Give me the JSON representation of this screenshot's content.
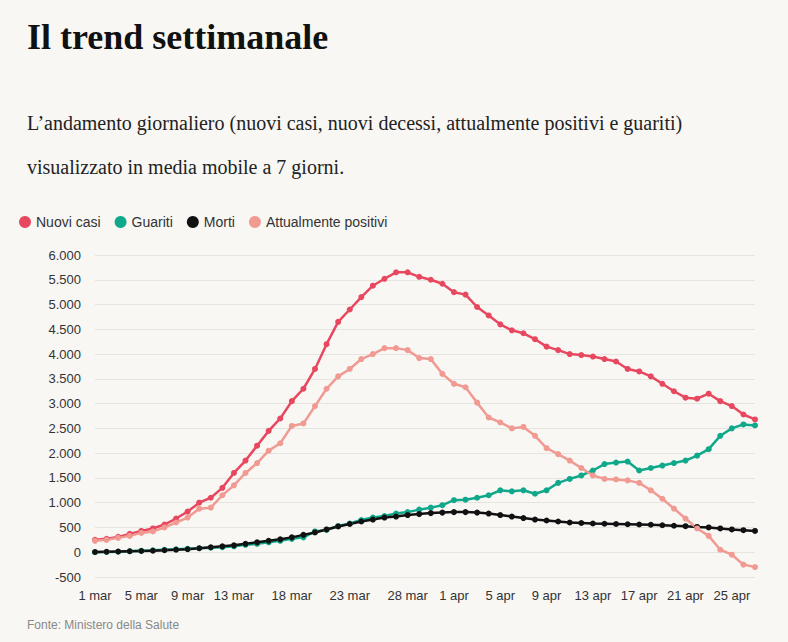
{
  "chart_data": {
    "type": "line",
    "title": "Il trend settimanale",
    "subtitle": "L’andamento giornaliero (nuovi casi, nuovi decessi, attualmente positivi e guariti) visualizzato in media mobile a 7 giorni.",
    "source": "Fonte: Ministero della Salute",
    "categories": [
      "1 mar",
      null,
      null,
      null,
      "5 mar",
      null,
      null,
      null,
      "9 mar",
      null,
      null,
      null,
      "13 mar",
      null,
      null,
      null,
      null,
      "18 mar",
      null,
      null,
      null,
      null,
      "23 mar",
      null,
      null,
      null,
      null,
      "28 mar",
      null,
      null,
      null,
      "1 apr",
      null,
      null,
      null,
      "5 apr",
      null,
      null,
      null,
      "9 apr",
      null,
      null,
      null,
      "13 apr",
      null,
      null,
      null,
      "17 apr",
      null,
      null,
      null,
      "21 apr",
      null,
      null,
      null,
      "25 apr",
      null,
      null
    ],
    "series": [
      {
        "name": "Nuovi casi",
        "color": "#e8485f",
        "values": [
          250,
          270,
          310,
          370,
          430,
          480,
          560,
          680,
          820,
          1000,
          1100,
          1300,
          1600,
          1850,
          2150,
          2450,
          2700,
          3050,
          3300,
          3700,
          4200,
          4650,
          4900,
          5150,
          5380,
          5520,
          5650,
          5650,
          5560,
          5500,
          5420,
          5250,
          5200,
          4950,
          4780,
          4600,
          4480,
          4420,
          4300,
          4150,
          4080,
          4000,
          3980,
          3950,
          3900,
          3850,
          3700,
          3650,
          3550,
          3400,
          3250,
          3120,
          3100,
          3200,
          3050,
          2950,
          2780,
          2680
        ]
      },
      {
        "name": "Guariti",
        "color": "#10a88a",
        "values": [
          0,
          5,
          10,
          20,
          30,
          40,
          50,
          60,
          70,
          80,
          90,
          100,
          120,
          150,
          170,
          200,
          230,
          270,
          300,
          420,
          450,
          530,
          580,
          650,
          700,
          730,
          780,
          810,
          860,
          900,
          950,
          1050,
          1060,
          1100,
          1150,
          1250,
          1230,
          1250,
          1180,
          1250,
          1400,
          1480,
          1550,
          1650,
          1780,
          1810,
          1830,
          1650,
          1700,
          1750,
          1800,
          1850,
          1950,
          2080,
          2350,
          2500,
          2580,
          2560
        ]
      },
      {
        "name": "Morti",
        "color": "#111111",
        "values": [
          5,
          10,
          15,
          20,
          25,
          30,
          40,
          50,
          60,
          80,
          100,
          120,
          140,
          170,
          200,
          230,
          260,
          300,
          350,
          400,
          460,
          520,
          570,
          620,
          660,
          700,
          720,
          750,
          770,
          790,
          800,
          810,
          810,
          800,
          780,
          750,
          720,
          690,
          660,
          640,
          620,
          600,
          590,
          580,
          575,
          570,
          565,
          560,
          555,
          545,
          535,
          525,
          510,
          500,
          480,
          460,
          445,
          430
        ]
      },
      {
        "name": "Attualmente positivi",
        "color": "#f09a92",
        "values": [
          230,
          250,
          290,
          330,
          390,
          420,
          500,
          600,
          700,
          880,
          900,
          1150,
          1350,
          1600,
          1800,
          2050,
          2200,
          2550,
          2600,
          2950,
          3300,
          3550,
          3700,
          3900,
          4000,
          4120,
          4120,
          4080,
          3920,
          3900,
          3600,
          3400,
          3330,
          3020,
          2720,
          2620,
          2500,
          2530,
          2350,
          2100,
          1980,
          1850,
          1700,
          1550,
          1480,
          1470,
          1450,
          1400,
          1250,
          1080,
          880,
          680,
          480,
          330,
          50,
          -50,
          -250,
          -300
        ]
      }
    ],
    "ylim": [
      -500,
      6000
    ],
    "yticks": [
      -500,
      0,
      500,
      {
        "value": 1000,
        "label": "1.000"
      },
      {
        "value": 1500,
        "label": "1.500"
      },
      {
        "value": 2000,
        "label": "2.000"
      },
      {
        "value": 2500,
        "label": "2.500"
      },
      {
        "value": 3000,
        "label": "3.000"
      },
      {
        "value": 3500,
        "label": "3.500"
      },
      {
        "value": 4000,
        "label": "4.000"
      },
      {
        "value": 4500,
        "label": "4.500"
      },
      {
        "value": 5000,
        "label": "5.000"
      },
      {
        "value": 5500,
        "label": "5.500"
      },
      {
        "value": 6000,
        "label": "6.000"
      }
    ],
    "grid": true,
    "legend": "top-left",
    "marker": "circle"
  }
}
